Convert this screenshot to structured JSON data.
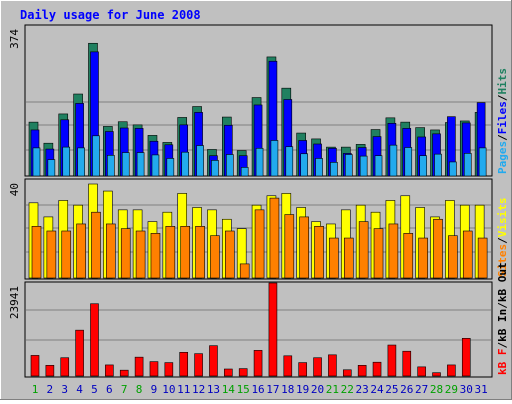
{
  "chart_data": {
    "type": "bar",
    "title": "Daily usage for June 2008",
    "categories": [
      "1",
      "2",
      "3",
      "4",
      "5",
      "6",
      "7",
      "8",
      "9",
      "10",
      "11",
      "12",
      "13",
      "14",
      "15",
      "16",
      "17",
      "18",
      "19",
      "20",
      "21",
      "22",
      "23",
      "24",
      "25",
      "26",
      "27",
      "28",
      "29",
      "30",
      "31"
    ],
    "weekend_days": [
      "1",
      "7",
      "8",
      "14",
      "15",
      "21",
      "22",
      "28",
      "29"
    ],
    "panels": [
      {
        "name": "hits-files-pages",
        "max_label": "374",
        "ylim": [
          0,
          374
        ],
        "axis_legend": [
          "Pages",
          "Files",
          "Hits"
        ],
        "series": [
          {
            "name": "Hits",
            "color": "#208060",
            "values": [
              138,
              84,
              159,
              210,
              340,
              127,
              139,
              131,
              104,
              86,
              150,
              178,
              68,
              151,
              65,
              201,
              305,
              225,
              110,
              95,
              74,
              74,
              81,
              119,
              149,
              138,
              124,
              118,
              137,
              141,
              163
            ]
          },
          {
            "name": "Files",
            "color": "#0000ff",
            "values": [
              118,
              69,
              144,
              186,
              318,
              114,
              123,
              122,
              89,
              80,
              131,
              163,
              52,
              130,
              52,
              182,
              294,
              196,
              91,
              82,
              71,
              58,
              73,
              101,
              135,
              122,
              100,
              108,
              152,
              136,
              188
            ]
          },
          {
            "name": "Pages",
            "color": "#22aaee",
            "values": [
              72,
              42,
              74,
              72,
              103,
              53,
              60,
              60,
              54,
              45,
              61,
              78,
              40,
              55,
              22,
              71,
              91,
              75,
              57,
              45,
              35,
              55,
              51,
              52,
              79,
              73,
              52,
              56,
              36,
              58,
              72
            ]
          }
        ]
      },
      {
        "name": "visits-sites",
        "max_label": "40",
        "ylim": [
          0,
          40
        ],
        "axis_legend": [
          "Sites",
          "Visits"
        ],
        "series": [
          {
            "name": "Visits",
            "color": "#ffff00",
            "values": [
              32,
              26,
              33,
              31,
              40,
              37,
              29,
              29,
              24,
              28,
              36,
              30,
              29,
              25,
              21,
              31,
              35,
              36,
              30,
              24,
              23,
              29,
              31,
              28,
              33,
              35,
              30,
              26,
              33,
              31,
              31
            ]
          },
          {
            "name": "Sites",
            "color": "#ff8000",
            "values": [
              22,
              20,
              20,
              23,
              28,
              23,
              21,
              20,
              19,
              22,
              22,
              22,
              18,
              20,
              6,
              29,
              34,
              27,
              26,
              22,
              17,
              17,
              24,
              21,
              23,
              19,
              17,
              25,
              18,
              20,
              17
            ]
          }
        ]
      },
      {
        "name": "kbytes",
        "max_label": "23941",
        "ylim": [
          0,
          23941
        ],
        "axis_legend": [
          "kB F",
          "kB In",
          "kB Out"
        ],
        "series": [
          {
            "name": "kB F",
            "color": "#ff0000",
            "values": [
              5300,
              2750,
              4700,
              11800,
              18600,
              2850,
              1500,
              4850,
              3700,
              3450,
              6100,
              5750,
              7800,
              1800,
              1900,
              6600,
              23941,
              5200,
              3450,
              4700,
              5450,
              1600,
              2750,
              3550,
              7970,
              6380,
              2350,
              850,
              2850,
              9700,
              0
            ]
          }
        ]
      }
    ]
  }
}
